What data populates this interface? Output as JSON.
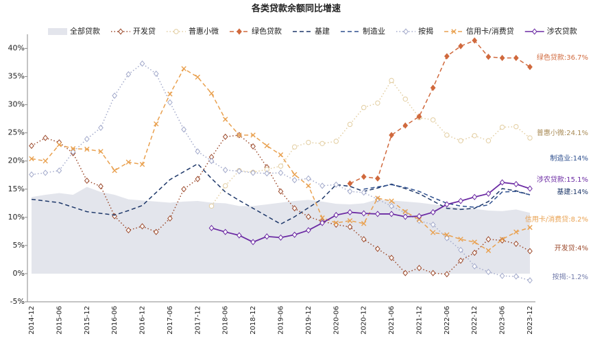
{
  "chart_data": {
    "type": "line",
    "title": "各类贷款余额同比增速",
    "categories": [
      "2014-12",
      null,
      "2015-06",
      null,
      "2015-12",
      null,
      "2016-06",
      null,
      "2016-12",
      null,
      "2017-06",
      null,
      "2017-12",
      null,
      "2018-06",
      null,
      "2018-12",
      null,
      "2019-06",
      null,
      "2019-12",
      null,
      "2020-06",
      null,
      "2020-12",
      null,
      "2021-06",
      null,
      "2021-12",
      null,
      "2022-06",
      null,
      "2022-12",
      null,
      "2023-06",
      null,
      "2023-12"
    ],
    "ylim": [
      -5,
      42.5
    ],
    "yticks": [
      {
        "value": -5,
        "label": "-5%"
      },
      {
        "value": 0,
        "label": "0%"
      },
      {
        "value": 5,
        "label": "5%"
      },
      {
        "value": 10,
        "label": "10%"
      },
      {
        "value": 15,
        "label": "15%"
      },
      {
        "value": 20,
        "label": "20%"
      },
      {
        "value": 25,
        "label": "25%"
      },
      {
        "value": 30,
        "label": "30%"
      },
      {
        "value": 35,
        "label": "35%"
      },
      {
        "value": 40,
        "label": "40%"
      }
    ],
    "grid": false,
    "series": [
      {
        "name": "全部贷款",
        "kind": "area",
        "color": "#e3e5ec",
        "values": [
          13.6,
          14.0,
          14.3,
          14.0,
          15.4,
          14.5,
          14.0,
          13.2,
          13.0,
          12.8,
          12.6,
          12.8,
          12.9,
          12.6,
          12.5,
          12.0,
          12.0,
          12.3,
          12.6,
          12.9,
          13.1,
          12.8,
          12.4,
          12.3,
          12.5,
          13.2,
          13.0,
          12.8,
          12.6,
          12.3,
          12.0,
          11.7,
          11.5,
          11.2,
          11.1,
          11.4,
          10.8
        ]
      },
      {
        "name": "开发贷",
        "kind": "line",
        "dash": "dot",
        "marker": "diamond-open",
        "color": "#9c4a2c",
        "end_label": "开发贷:4%",
        "values": [
          22.7,
          24.1,
          23.3,
          21.4,
          16.5,
          15.5,
          10.2,
          7.7,
          8.4,
          7.4,
          9.8,
          15.0,
          16.8,
          20.7,
          24.3,
          24.6,
          22.6,
          18.9,
          14.6,
          11.6,
          10.1,
          9.3,
          8.7,
          8.3,
          6.1,
          4.4,
          2.8,
          0.1,
          1.0,
          0.1,
          -0.1,
          2.3,
          3.7,
          6.1,
          5.9,
          5.3,
          4.0
        ]
      },
      {
        "name": "普惠小微",
        "kind": "line",
        "dash": "dot",
        "marker": "circle-open",
        "color": "#e2cda0",
        "end_label": "普惠小微:24.1%",
        "values": [
          null,
          null,
          null,
          null,
          null,
          null,
          null,
          null,
          null,
          null,
          null,
          null,
          null,
          12.0,
          15.6,
          18.3,
          18.0,
          18.5,
          19.1,
          22.5,
          23.3,
          23.1,
          23.5,
          26.5,
          29.5,
          30.3,
          34.3,
          31.0,
          27.7,
          27.3,
          24.6,
          23.6,
          24.5,
          23.6,
          26.0,
          26.1,
          24.1
        ]
      },
      {
        "name": "绿色贷款",
        "kind": "line",
        "dash": "dash",
        "marker": "diamond",
        "color": "#d0693d",
        "end_label": "绿色贷款:36.7%",
        "values": [
          null,
          null,
          null,
          null,
          null,
          null,
          null,
          null,
          null,
          null,
          null,
          null,
          null,
          null,
          null,
          null,
          null,
          null,
          null,
          null,
          null,
          null,
          null,
          16.0,
          17.2,
          16.9,
          24.6,
          26.3,
          27.9,
          33.0,
          38.6,
          40.4,
          41.4,
          38.5,
          38.3,
          38.3,
          36.7
        ]
      },
      {
        "name": "基建",
        "kind": "line",
        "dash": "dash",
        "marker": "none",
        "color": "#1d3769",
        "end_label": "基建:14%",
        "values": [
          13.2,
          12.9,
          12.6,
          11.8,
          11.0,
          10.7,
          10.4,
          11.2,
          12.1,
          14.4,
          16.7,
          18.1,
          19.5,
          16.9,
          14.5,
          13.0,
          11.6,
          10.2,
          8.8,
          10.1,
          11.7,
          13.3,
          15.8,
          15.5,
          14.6,
          15.2,
          15.9,
          15.1,
          14.2,
          12.9,
          11.6,
          11.4,
          11.6,
          12.8,
          15.1,
          14.7,
          14.0
        ]
      },
      {
        "name": "制造业",
        "kind": "line",
        "dash": "dash",
        "marker": "none",
        "color": "#2e4f8e",
        "end_label": "制造业:14%",
        "values": [
          null,
          null,
          null,
          null,
          null,
          null,
          null,
          null,
          null,
          null,
          null,
          null,
          null,
          null,
          null,
          null,
          null,
          null,
          null,
          null,
          null,
          null,
          null,
          null,
          15.0,
          15.4,
          15.8,
          15.3,
          14.6,
          13.5,
          12.5,
          12.0,
          11.8,
          12.2,
          14.5,
          14.6,
          14.0
        ]
      },
      {
        "name": "按揭",
        "kind": "line",
        "dash": "dot",
        "marker": "diamond-open",
        "color": "#a3aacb",
        "end_label": "按揭:-1.2%",
        "values": [
          17.6,
          17.9,
          18.3,
          21.6,
          23.9,
          25.9,
          31.6,
          35.4,
          37.3,
          35.5,
          30.4,
          25.6,
          21.7,
          20.0,
          18.4,
          18.2,
          17.9,
          17.8,
          17.9,
          16.6,
          16.9,
          15.6,
          15.8,
          14.6,
          14.4,
          13.2,
          12.0,
          10.8,
          9.4,
          8.7,
          6.3,
          4.2,
          1.3,
          0.3,
          -0.4,
          -0.5,
          -1.2
        ]
      },
      {
        "name": "信用卡/消费贷",
        "kind": "line",
        "dash": "dash",
        "marker": "x",
        "color": "#e9a150",
        "end_label": "信用卡/消费贷:8.2%",
        "values": [
          20.4,
          20.0,
          22.9,
          22.2,
          22.1,
          21.7,
          18.3,
          19.8,
          19.4,
          26.6,
          31.9,
          36.4,
          34.9,
          32.0,
          27.4,
          24.6,
          24.6,
          22.7,
          21.1,
          17.6,
          15.6,
          9.9,
          9.0,
          9.4,
          8.9,
          13.4,
          12.9,
          11.0,
          9.6,
          7.3,
          6.9,
          6.1,
          5.6,
          4.1,
          6.1,
          7.4,
          8.2
        ]
      },
      {
        "name": "涉农贷款",
        "kind": "line",
        "dash": "solid",
        "marker": "diamond-open",
        "color": "#6b2aa3",
        "end_label": "涉农贷款:15.1%",
        "values": [
          null,
          null,
          null,
          null,
          null,
          null,
          null,
          null,
          null,
          null,
          null,
          null,
          null,
          8.1,
          7.4,
          6.8,
          5.6,
          6.6,
          6.4,
          6.9,
          7.7,
          9.0,
          10.4,
          10.9,
          10.7,
          10.6,
          10.6,
          10.1,
          10.2,
          10.9,
          12.3,
          12.9,
          13.6,
          14.2,
          16.2,
          15.9,
          15.1
        ]
      }
    ]
  }
}
